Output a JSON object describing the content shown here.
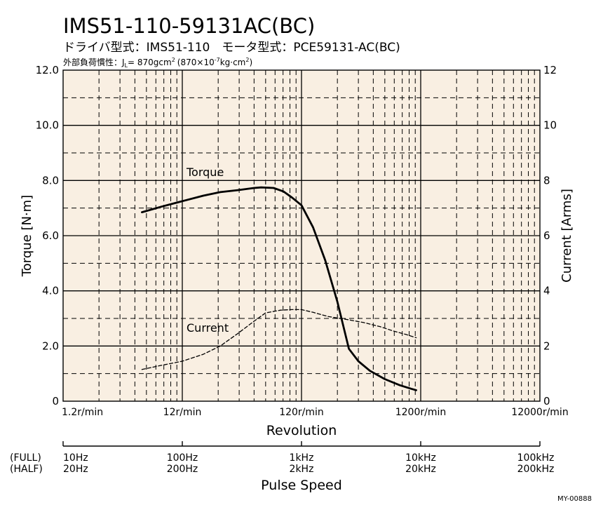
{
  "title": "IMS51-110-59131AC(BC)",
  "subtitle": "ドライバ型式：IMS51-110　モータ型式：PCE59131-AC(BC)",
  "load_inertia": {
    "label": "外部負荷慣性：J",
    "sub": "L",
    "value": "= 870gcm",
    "value_sup": "2",
    "paren_open": "(870×10",
    "paren_exp": "-7",
    "paren_unit": "kg·cm",
    "paren_unit_sup": "2",
    "paren_close": ")"
  },
  "footer_code": "MY-00888",
  "colors": {
    "plot_bg": "#f9efe2",
    "line": "#000000"
  },
  "chart_data": {
    "type": "line",
    "x_scale": "log",
    "xlabel": "Revolution",
    "xunit": "r/min",
    "xlim": [
      1.2,
      12000
    ],
    "x_ticks": [
      1.2,
      12,
      120,
      1200,
      12000
    ],
    "x_tick_labels": [
      "1.2r/min",
      "12r/min",
      "120r/min",
      "1200r/min",
      "12000r/min"
    ],
    "ylabel_left": "Torque [N·m]",
    "ylim_left": [
      0,
      12
    ],
    "y_ticks_left": [
      0,
      2,
      4,
      6,
      8,
      10,
      12
    ],
    "y_tick_labels_left": [
      "0",
      "2.0",
      "4.0",
      "6.0",
      "8.0",
      "10.0",
      "12.0"
    ],
    "ylabel_right": "Current [Arms]",
    "ylim_right": [
      0,
      12
    ],
    "y_ticks_right": [
      0,
      2,
      4,
      6,
      8,
      10,
      12
    ],
    "y_tick_labels_right": [
      "0",
      "2",
      "4",
      "6",
      "8",
      "10",
      "12"
    ],
    "grid": true,
    "series": [
      {
        "name": "Torque",
        "style": "solid",
        "x": [
          5.5,
          8,
          12,
          18,
          25,
          35,
          48,
          55,
          70,
          85,
          100,
          120,
          150,
          190,
          240,
          300,
          360,
          450,
          600,
          800,
          1000,
          1100
        ],
        "y": [
          6.85,
          7.05,
          7.25,
          7.45,
          7.58,
          7.65,
          7.73,
          7.75,
          7.73,
          7.6,
          7.38,
          7.1,
          6.3,
          5.1,
          3.6,
          1.9,
          1.45,
          1.1,
          0.8,
          0.58,
          0.45,
          0.4
        ]
      },
      {
        "name": "Current",
        "style": "dashed",
        "x": [
          5.5,
          8,
          12,
          18,
          25,
          35,
          48,
          60,
          80,
          100,
          120,
          150,
          200,
          300,
          400,
          550,
          700,
          900,
          1100
        ],
        "y": [
          1.15,
          1.3,
          1.45,
          1.7,
          2.0,
          2.45,
          2.9,
          3.2,
          3.3,
          3.32,
          3.32,
          3.22,
          3.07,
          2.95,
          2.85,
          2.7,
          2.55,
          2.42,
          2.3
        ]
      }
    ],
    "pulse_speed": {
      "label": "Pulse Speed",
      "full_label": "(FULL)",
      "half_label": "(HALF)",
      "full": [
        "10Hz",
        "100Hz",
        "1kHz",
        "10kHz",
        "100kHz"
      ],
      "half": [
        "20Hz",
        "200Hz",
        "2kHz",
        "20kHz",
        "200kHz"
      ]
    }
  }
}
